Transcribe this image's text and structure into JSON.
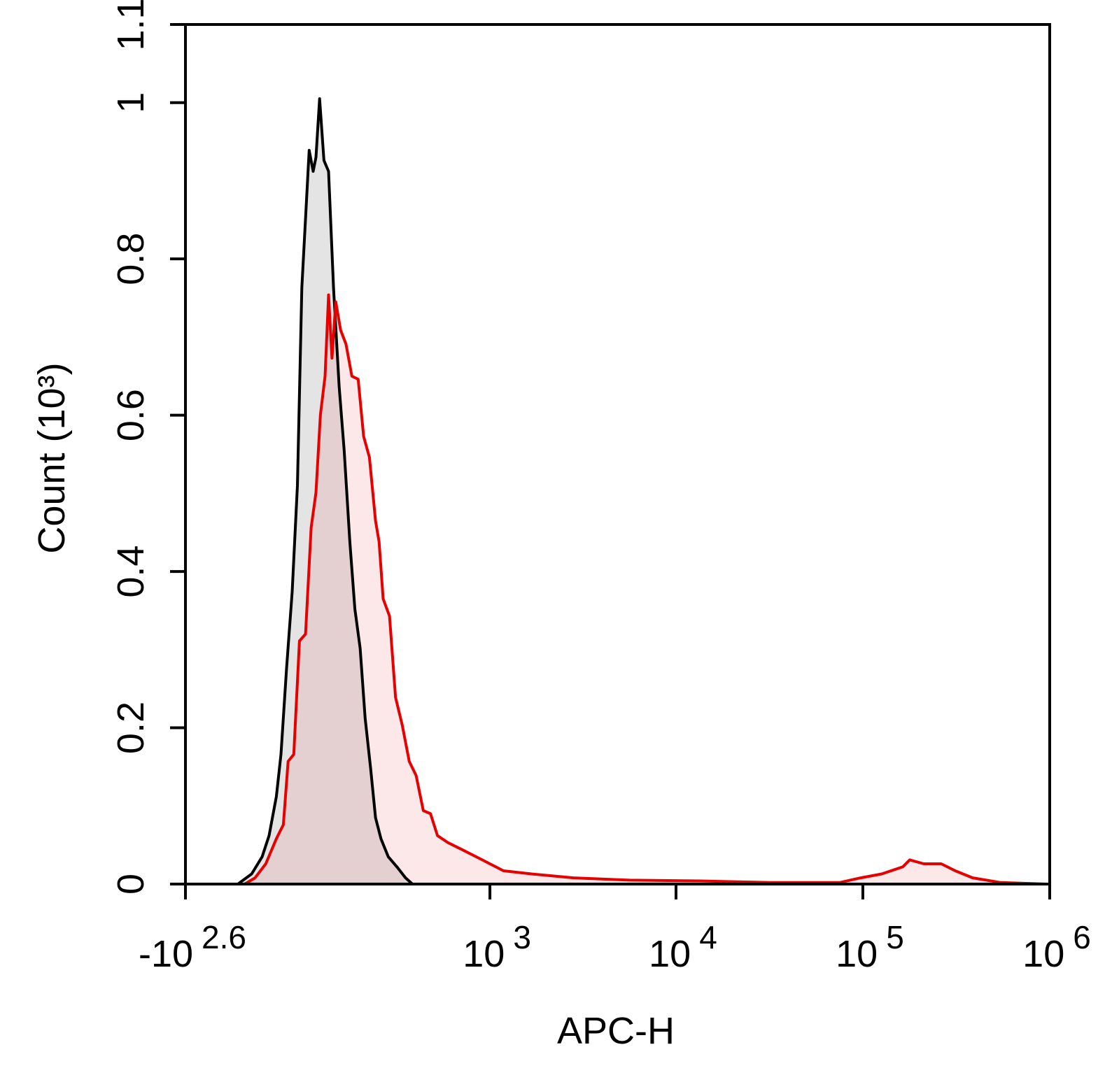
{
  "chart_data": {
    "type": "histogram-overlay",
    "x_label": "APC-H",
    "y_label": "Count  (10³)",
    "xscale": "biexponential",
    "xlim": [
      -398.1,
      1000000
    ],
    "xticks": [
      {
        "value": -398.1,
        "label": "-10",
        "exponent": "2.6"
      },
      {
        "value": 1000,
        "label": "10",
        "exponent": "3"
      },
      {
        "value": 10000,
        "label": "10",
        "exponent": "4"
      },
      {
        "value": 100000,
        "label": "10",
        "exponent": "5"
      },
      {
        "value": 1000000,
        "label": "10",
        "exponent": "6"
      }
    ],
    "ylim": [
      0,
      1.1
    ],
    "yticks": [
      0,
      0.2,
      0.4,
      0.6,
      0.8,
      1,
      1.1
    ],
    "series": [
      {
        "color": "#000000",
        "fill": "#e4e4e4",
        "x": [
          -176,
          -133,
          -103,
          -84,
          -65,
          -53,
          -39,
          -25,
          -12,
          -1,
          17,
          27,
          34,
          43,
          54,
          66,
          79,
          94,
          108,
          124,
          139,
          155,
          171,
          189,
          206,
          226,
          254,
          290,
          329,
          363
        ],
        "values": [
          0,
          0.013,
          0.035,
          0.062,
          0.112,
          0.166,
          0.275,
          0.374,
          0.51,
          0.763,
          0.939,
          0.912,
          0.93,
          1.005,
          0.926,
          0.912,
          0.763,
          0.637,
          0.555,
          0.438,
          0.352,
          0.302,
          0.212,
          0.148,
          0.085,
          0.058,
          0.035,
          0.022,
          0.008,
          0
        ]
      },
      {
        "color": "#e60000",
        "fill": "rgba(235,90,90,0.14)",
        "x": [
          -154,
          -123,
          -93,
          -65,
          -47,
          -35,
          -21,
          -7,
          8,
          22,
          34,
          45,
          57,
          66,
          75,
          85,
          98,
          113,
          130,
          149,
          166,
          185,
          206,
          219,
          234,
          259,
          284,
          314,
          347,
          382,
          422,
          465,
          510,
          586,
          703,
          908,
          1185,
          1680,
          2830,
          5650,
          13400,
          31700,
          75100,
          97400,
          126200,
          163500,
          178200,
          211800,
          262600,
          312200,
          387000,
          546500,
          958000
        ],
        "values": [
          0,
          0.008,
          0.026,
          0.058,
          0.076,
          0.157,
          0.166,
          0.311,
          0.32,
          0.456,
          0.501,
          0.6,
          0.65,
          0.754,
          0.673,
          0.745,
          0.709,
          0.691,
          0.65,
          0.646,
          0.573,
          0.546,
          0.465,
          0.438,
          0.365,
          0.343,
          0.239,
          0.203,
          0.157,
          0.139,
          0.094,
          0.09,
          0.062,
          0.053,
          0.044,
          0.031,
          0.017,
          0.013,
          0.008,
          0.005,
          0.004,
          0.002,
          0.002,
          0.008,
          0.013,
          0.022,
          0.031,
          0.026,
          0.026,
          0.017,
          0.008,
          0.002,
          0
        ]
      }
    ]
  }
}
